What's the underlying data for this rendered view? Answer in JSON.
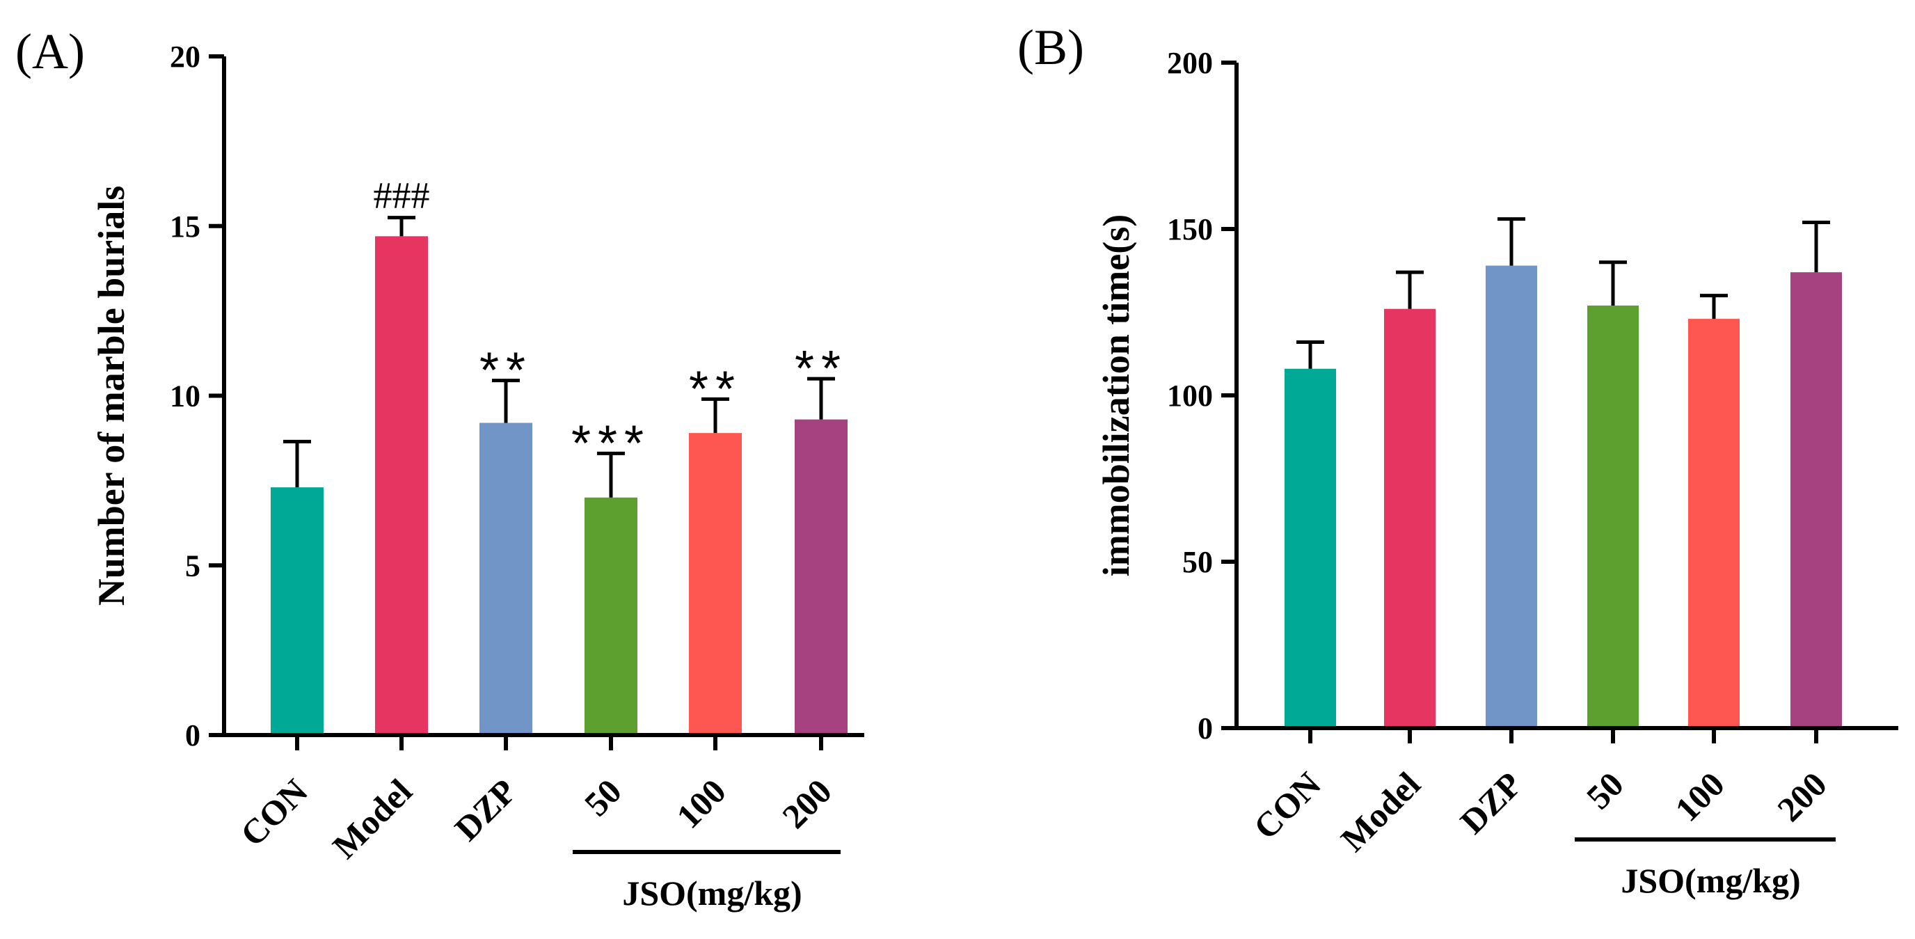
{
  "chart_data": [
    {
      "type": "bar",
      "panel_label": "(A)",
      "ylabel": "Number of marble burials",
      "ylim": [
        0,
        20
      ],
      "yticks": [
        0,
        5,
        10,
        15,
        20
      ],
      "categories": [
        "CON",
        "Model",
        "DZP",
        "50",
        "100",
        "200"
      ],
      "values": [
        7.3,
        14.7,
        9.2,
        7.0,
        8.9,
        9.3
      ],
      "errors": [
        1.35,
        0.55,
        1.25,
        1.3,
        1.0,
        1.2
      ],
      "colors": [
        "#00a896",
        "#e73562",
        "#7295c7",
        "#5ea02f",
        "#fe5650",
        "#a5427f"
      ],
      "significance": [
        "",
        "###",
        "**",
        "***",
        "**",
        "**"
      ],
      "group_label": "JSO(mg/kg)",
      "group_categories": [
        "50",
        "100",
        "200"
      ]
    },
    {
      "type": "bar",
      "panel_label": "(B)",
      "ylabel": "immobilization time(s)",
      "ylim": [
        0,
        200
      ],
      "yticks": [
        0,
        50,
        100,
        150,
        200
      ],
      "categories": [
        "CON",
        "Model",
        "DZP",
        "50",
        "100",
        "200"
      ],
      "values": [
        108,
        126,
        139,
        127,
        123,
        137
      ],
      "errors": [
        8,
        11,
        14,
        13,
        7,
        15
      ],
      "colors": [
        "#00a896",
        "#e73562",
        "#7295c7",
        "#5ea02f",
        "#fe5650",
        "#a5427f"
      ],
      "significance": [
        "",
        "",
        "",
        "",
        "",
        ""
      ],
      "group_label": "JSO(mg/kg)",
      "group_categories": [
        "50",
        "100",
        "200"
      ]
    }
  ]
}
